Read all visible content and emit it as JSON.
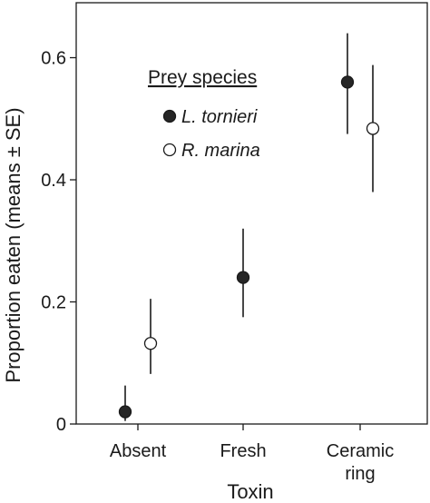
{
  "chart_data": {
    "type": "scatter",
    "categories": [
      [
        "Absent"
      ],
      [
        "Fresh"
      ],
      [
        "Ceramic",
        "ring"
      ]
    ],
    "xlabel": "Toxin",
    "ylabel": "Proportion eaten (means ± SE)",
    "ylim": [
      0,
      0.69
    ],
    "yticks": [
      "0",
      "0.2",
      "0.4",
      "0.6"
    ],
    "ytick_values": [
      0,
      0.2,
      0.4,
      0.6
    ],
    "legend": {
      "title": "Prey species",
      "placement": "upper-center"
    },
    "series": [
      {
        "name": "L. tornieri",
        "marker": "filled-circle",
        "color": "#262626",
        "points": [
          {
            "category": 0,
            "y": 0.02,
            "lo": 0.005,
            "hi": 0.063
          },
          {
            "category": 1,
            "y": 0.24,
            "lo": 0.175,
            "hi": 0.32
          },
          {
            "category": 2,
            "y": 0.56,
            "lo": 0.475,
            "hi": 0.64
          }
        ]
      },
      {
        "name": "R. marina",
        "marker": "open-circle",
        "color": "#ffffff",
        "points": [
          {
            "category": 0,
            "y": 0.132,
            "lo": 0.082,
            "hi": 0.205
          },
          {
            "category": 2,
            "y": 0.484,
            "lo": 0.38,
            "hi": 0.588
          }
        ]
      }
    ]
  }
}
